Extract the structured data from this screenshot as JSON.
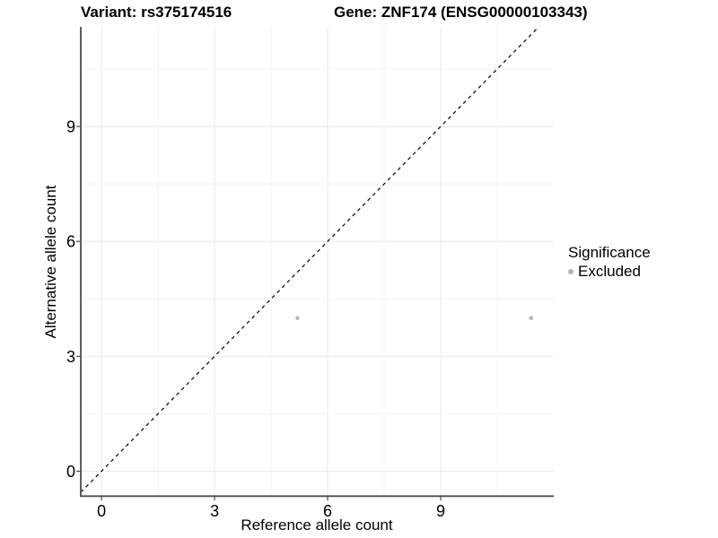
{
  "figure": {
    "title_left": "Variant: rs375174516",
    "title_right": "Gene: ZNF174 (ENSG00000103343)"
  },
  "chart_data": {
    "type": "scatter",
    "title_left": "Variant: rs375174516",
    "title_right": "Gene: ZNF174 (ENSG00000103343)",
    "xlabel": "Reference allele count",
    "ylabel": "Alternative allele count",
    "xlim": [
      -0.55,
      12.0
    ],
    "ylim": [
      -0.65,
      11.6
    ],
    "xticks": [
      0,
      3,
      6,
      9
    ],
    "yticks": [
      0,
      3,
      6,
      9
    ],
    "x_minor_breaks": [
      1.5,
      4.5,
      7.5,
      10.5
    ],
    "y_minor_breaks": [
      1.5,
      4.5,
      7.5,
      10.5
    ],
    "grid": true,
    "series": [
      {
        "name": "Excluded",
        "marker": "circle",
        "color": "#b5b5b5",
        "points": [
          {
            "x": 5.2,
            "y": 4.0
          },
          {
            "x": 11.4,
            "y": 4.0
          }
        ]
      }
    ],
    "reference_line": {
      "equation": "y = x",
      "style": "dashed",
      "color": "#000000"
    },
    "legend": {
      "title": "Significance",
      "position": "right",
      "items": [
        {
          "label": "Excluded",
          "color": "#b5b5b5",
          "marker": "circle"
        }
      ]
    }
  },
  "colors": {
    "background": "#ffffff",
    "text": "#000000",
    "axis_line": "#4d4d4d",
    "tick_mark": "#4d4d4d",
    "grid_major": "#e9e9e9",
    "grid_minor": "#f4f4f4",
    "point": "#b5b5b5",
    "dashed_line": "#000000"
  }
}
